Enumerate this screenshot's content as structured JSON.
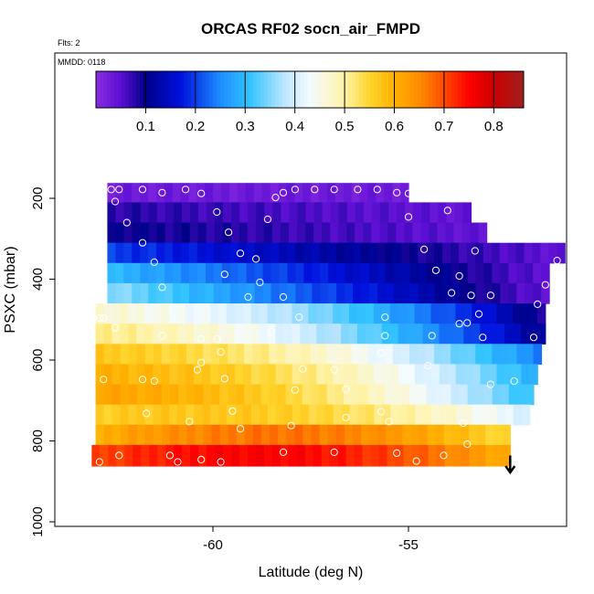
{
  "chart_data": {
    "type": "heatmap",
    "title": "ORCAS RF02 socn_air_FMPD",
    "note_flts": "Flts: 2",
    "note_mmdd": "MMDD: 0118",
    "xlabel": "Latitude (deg N)",
    "ylabel": "PSXC (mbar)",
    "xlim": [
      -63.1,
      -50.7
    ],
    "ylim": [
      1000,
      0
    ],
    "x_ticks": [
      -60,
      -55
    ],
    "y_ticks": [
      200,
      400,
      600,
      800,
      1000
    ],
    "grid": false,
    "legend": "colorbar-top",
    "colorbar": {
      "range": [
        0,
        0.86
      ],
      "ticks": [
        "0.1",
        "0.2",
        "0.3",
        "0.4",
        "0.5",
        "0.6",
        "0.7",
        "0.8"
      ],
      "tick_values": [
        0.1,
        0.2,
        0.3,
        0.4,
        0.5,
        0.6,
        0.7,
        0.8
      ],
      "stops": [
        {
          "v": 0.0,
          "color": "#8a2be2"
        },
        {
          "v": 0.05,
          "color": "#5b0fd2"
        },
        {
          "v": 0.1,
          "color": "#000088"
        },
        {
          "v": 0.17,
          "color": "#0010dd"
        },
        {
          "v": 0.25,
          "color": "#1c8cff"
        },
        {
          "v": 0.31,
          "color": "#33c4ff"
        },
        {
          "v": 0.38,
          "color": "#bfe6ff"
        },
        {
          "v": 0.43,
          "color": "#f4fbff"
        },
        {
          "v": 0.5,
          "color": "#fff3a8"
        },
        {
          "v": 0.55,
          "color": "#ffd52e"
        },
        {
          "v": 0.6,
          "color": "#ffb000"
        },
        {
          "v": 0.65,
          "color": "#ff8c00"
        },
        {
          "v": 0.7,
          "color": "#ff4a00"
        },
        {
          "v": 0.75,
          "color": "#ff0000"
        },
        {
          "v": 0.8,
          "color": "#cc0000"
        },
        {
          "v": 0.86,
          "color": "#a02020"
        }
      ]
    },
    "bands": [
      {
        "p_top": 162,
        "p_bottom": 210,
        "x_start": -62.7,
        "x_end": -55.0,
        "v_left": 0.03,
        "v_right": 0.03
      },
      {
        "p_top": 210,
        "p_bottom": 260,
        "x_start": -62.7,
        "x_end": -53.4,
        "v_left": 0.08,
        "v_right": 0.04
      },
      {
        "p_top": 260,
        "p_bottom": 310,
        "x_start": -62.7,
        "x_end": -53.0,
        "v_left": 0.1,
        "v_right": 0.04
      },
      {
        "p_top": 310,
        "p_bottom": 360,
        "x_start": -62.7,
        "x_end": -51.0,
        "v_left": 0.2,
        "v_right": 0.04
      },
      {
        "p_top": 360,
        "p_bottom": 410,
        "x_start": -62.7,
        "x_end": -51.4,
        "v_left": 0.3,
        "v_right": 0.04
      },
      {
        "p_top": 410,
        "p_bottom": 460,
        "x_start": -62.7,
        "x_end": -51.4,
        "v_left": 0.36,
        "v_right": 0.04
      },
      {
        "p_top": 460,
        "p_bottom": 510,
        "x_start": -63.0,
        "x_end": -51.5,
        "v_left": 0.47,
        "v_right": 0.08
      },
      {
        "p_top": 510,
        "p_bottom": 560,
        "x_start": -63.0,
        "x_end": -51.5,
        "v_left": 0.52,
        "v_right": 0.1
      },
      {
        "p_top": 560,
        "p_bottom": 610,
        "x_start": -63.0,
        "x_end": -51.6,
        "v_left": 0.57,
        "v_right": 0.24
      },
      {
        "p_top": 610,
        "p_bottom": 660,
        "x_start": -63.0,
        "x_end": -51.7,
        "v_left": 0.6,
        "v_right": 0.28
      },
      {
        "p_top": 660,
        "p_bottom": 710,
        "x_start": -63.0,
        "x_end": -51.8,
        "v_left": 0.62,
        "v_right": 0.3
      },
      {
        "p_top": 710,
        "p_bottom": 760,
        "x_start": -63.0,
        "x_end": -51.9,
        "v_left": 0.56,
        "v_right": 0.4
      },
      {
        "p_top": 760,
        "p_bottom": 810,
        "x_start": -63.0,
        "x_end": -52.4,
        "v_left": 0.6,
        "v_right": 0.54
      },
      {
        "p_top": 810,
        "p_bottom": 862,
        "x_start": -63.1,
        "x_end": -52.4,
        "v_left": 0.7,
        "v_right": 0.6
      }
    ],
    "band_profile": "peak-mid",
    "sample_points": [
      {
        "lat": -62.6,
        "p": 178
      },
      {
        "lat": -62.4,
        "p": 178
      },
      {
        "lat": -61.8,
        "p": 178
      },
      {
        "lat": -61.3,
        "p": 186
      },
      {
        "lat": -60.7,
        "p": 178
      },
      {
        "lat": -60.3,
        "p": 188
      },
      {
        "lat": -58.4,
        "p": 198
      },
      {
        "lat": -58.2,
        "p": 186
      },
      {
        "lat": -57.9,
        "p": 178
      },
      {
        "lat": -57.4,
        "p": 178
      },
      {
        "lat": -56.9,
        "p": 178
      },
      {
        "lat": -56.3,
        "p": 178
      },
      {
        "lat": -55.8,
        "p": 178
      },
      {
        "lat": -55.3,
        "p": 186
      },
      {
        "lat": -55.0,
        "p": 188
      },
      {
        "lat": -62.5,
        "p": 208
      },
      {
        "lat": -59.9,
        "p": 234
      },
      {
        "lat": -58.6,
        "p": 252
      },
      {
        "lat": -55.0,
        "p": 246
      },
      {
        "lat": -54.0,
        "p": 230
      },
      {
        "lat": -62.2,
        "p": 260
      },
      {
        "lat": -59.6,
        "p": 284
      },
      {
        "lat": -51.7,
        "p": 300
      },
      {
        "lat": -61.8,
        "p": 310
      },
      {
        "lat": -54.6,
        "p": 326
      },
      {
        "lat": -53.3,
        "p": 330
      },
      {
        "lat": -59.3,
        "p": 336
      },
      {
        "lat": -58.9,
        "p": 350
      },
      {
        "lat": -61.5,
        "p": 358
      },
      {
        "lat": -51.2,
        "p": 354
      },
      {
        "lat": -54.3,
        "p": 378
      },
      {
        "lat": -59.7,
        "p": 388
      },
      {
        "lat": -53.7,
        "p": 392
      },
      {
        "lat": -58.8,
        "p": 408
      },
      {
        "lat": -61.3,
        "p": 420
      },
      {
        "lat": -51.5,
        "p": 414
      },
      {
        "lat": -53.9,
        "p": 434
      },
      {
        "lat": -53.4,
        "p": 440
      },
      {
        "lat": -52.9,
        "p": 440
      },
      {
        "lat": -59.1,
        "p": 444
      },
      {
        "lat": -58.2,
        "p": 444
      },
      {
        "lat": -51.7,
        "p": 462
      },
      {
        "lat": -62.9,
        "p": 496
      },
      {
        "lat": -62.8,
        "p": 496
      },
      {
        "lat": -57.8,
        "p": 494
      },
      {
        "lat": -55.6,
        "p": 494
      },
      {
        "lat": -53.2,
        "p": 486
      },
      {
        "lat": -53.7,
        "p": 510
      },
      {
        "lat": -53.5,
        "p": 508
      },
      {
        "lat": -62.5,
        "p": 520
      },
      {
        "lat": -61.3,
        "p": 540
      },
      {
        "lat": -60.3,
        "p": 548
      },
      {
        "lat": -59.9,
        "p": 548
      },
      {
        "lat": -58.5,
        "p": 530
      },
      {
        "lat": -55.6,
        "p": 540
      },
      {
        "lat": -54.4,
        "p": 540
      },
      {
        "lat": -53.1,
        "p": 544
      },
      {
        "lat": -51.8,
        "p": 544
      },
      {
        "lat": -59.8,
        "p": 580
      },
      {
        "lat": -55.7,
        "p": 582
      },
      {
        "lat": -62.8,
        "p": 648
      },
      {
        "lat": -60.3,
        "p": 606
      },
      {
        "lat": -60.4,
        "p": 624
      },
      {
        "lat": -59.7,
        "p": 646
      },
      {
        "lat": -57.7,
        "p": 622
      },
      {
        "lat": -56.9,
        "p": 624
      },
      {
        "lat": -57.9,
        "p": 674
      },
      {
        "lat": -56.6,
        "p": 672
      },
      {
        "lat": -54.5,
        "p": 614
      },
      {
        "lat": -52.9,
        "p": 660
      },
      {
        "lat": -52.3,
        "p": 652
      },
      {
        "lat": -61.8,
        "p": 648
      },
      {
        "lat": -61.5,
        "p": 652
      },
      {
        "lat": -59.5,
        "p": 726
      },
      {
        "lat": -55.7,
        "p": 728
      },
      {
        "lat": -61.7,
        "p": 732
      },
      {
        "lat": -60.6,
        "p": 752
      },
      {
        "lat": -59.3,
        "p": 770
      },
      {
        "lat": -58.0,
        "p": 762
      },
      {
        "lat": -56.6,
        "p": 742
      },
      {
        "lat": -55.5,
        "p": 752
      },
      {
        "lat": -53.6,
        "p": 756
      },
      {
        "lat": -52.2,
        "p": 770
      },
      {
        "lat": -62.4,
        "p": 836
      },
      {
        "lat": -62.9,
        "p": 852
      },
      {
        "lat": -61.1,
        "p": 836
      },
      {
        "lat": -60.9,
        "p": 852
      },
      {
        "lat": -60.3,
        "p": 846
      },
      {
        "lat": -59.8,
        "p": 852
      },
      {
        "lat": -58.2,
        "p": 828
      },
      {
        "lat": -56.9,
        "p": 828
      },
      {
        "lat": -55.3,
        "p": 830
      },
      {
        "lat": -54.8,
        "p": 850
      },
      {
        "lat": -54.1,
        "p": 836
      },
      {
        "lat": -53.5,
        "p": 808
      }
    ],
    "arrow": {
      "lat": -52.4,
      "p_from": 836,
      "p_to": 878
    }
  }
}
